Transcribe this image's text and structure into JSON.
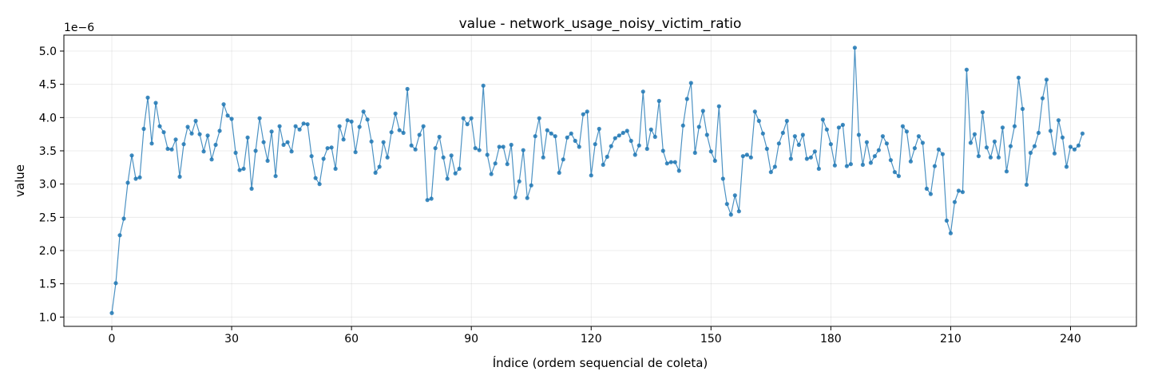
{
  "chart_data": {
    "type": "line",
    "title": "value - network_usage_noisy_victim_ratio",
    "xlabel": "Índice (ordem sequencial de coleta)",
    "ylabel": "value",
    "y_offset_label": "1e−6",
    "xlim": [
      -12,
      256.5
    ],
    "ylim": [
      0.86,
      5.24
    ],
    "xticks": [
      0,
      30,
      60,
      90,
      120,
      150,
      180,
      210,
      240
    ],
    "yticks": [
      1.0,
      1.5,
      2.0,
      2.5,
      3.0,
      3.5,
      4.0,
      4.5,
      5.0
    ],
    "xtick_labels": [
      "0",
      "30",
      "60",
      "90",
      "120",
      "150",
      "180",
      "210",
      "240"
    ],
    "ytick_labels": [
      "1.0",
      "1.5",
      "2.0",
      "2.5",
      "3.0",
      "3.5",
      "4.0",
      "4.5",
      "5.0"
    ],
    "grid": true,
    "line_color": "#1f77b4",
    "series": [
      {
        "values": [
          1.06,
          1.51,
          2.23,
          2.48,
          3.02,
          3.43,
          3.08,
          3.1,
          3.83,
          4.3,
          3.61,
          4.22,
          3.87,
          3.78,
          3.53,
          3.52,
          3.67,
          3.11,
          3.6,
          3.86,
          3.76,
          3.95,
          3.75,
          3.49,
          3.73,
          3.37,
          3.59,
          3.8,
          4.2,
          4.03,
          3.98,
          3.47,
          3.21,
          3.23,
          3.7,
          2.93,
          3.5,
          3.99,
          3.63,
          3.35,
          3.79,
          3.12,
          3.87,
          3.59,
          3.63,
          3.49,
          3.87,
          3.82,
          3.91,
          3.9,
          3.42,
          3.09,
          3.0,
          3.38,
          3.54,
          3.55,
          3.23,
          3.87,
          3.67,
          3.96,
          3.94,
          3.48,
          3.86,
          4.09,
          3.97,
          3.64,
          3.17,
          3.26,
          3.63,
          3.4,
          3.78,
          4.06,
          3.81,
          3.77,
          4.43,
          3.58,
          3.52,
          3.74,
          3.87,
          2.76,
          2.78,
          3.54,
          3.71,
          3.4,
          3.08,
          3.43,
          3.16,
          3.23,
          3.99,
          3.9,
          3.99,
          3.54,
          3.51,
          4.48,
          3.44,
          3.15,
          3.31,
          3.56,
          3.56,
          3.3,
          3.59,
          2.8,
          3.04,
          3.51,
          2.79,
          2.98,
          3.72,
          3.99,
          3.4,
          3.81,
          3.76,
          3.72,
          3.17,
          3.37,
          3.7,
          3.76,
          3.65,
          3.56,
          4.05,
          4.09,
          3.13,
          3.6,
          3.83,
          3.29,
          3.41,
          3.57,
          3.69,
          3.73,
          3.77,
          3.8,
          3.65,
          3.44,
          3.58,
          4.39,
          3.53,
          3.82,
          3.71,
          4.25,
          3.5,
          3.31,
          3.33,
          3.33,
          3.2,
          3.88,
          4.28,
          4.52,
          3.47,
          3.86,
          4.1,
          3.74,
          3.49,
          3.35,
          4.17,
          3.08,
          2.7,
          2.54,
          2.83,
          2.59,
          3.42,
          3.44,
          3.4,
          4.09,
          3.95,
          3.76,
          3.53,
          3.18,
          3.26,
          3.61,
          3.77,
          3.95,
          3.38,
          3.72,
          3.59,
          3.74,
          3.38,
          3.4,
          3.49,
          3.23,
          3.97,
          3.82,
          3.6,
          3.28,
          3.85,
          3.89,
          3.27,
          3.3,
          5.05,
          3.74,
          3.29,
          3.63,
          3.32,
          3.42,
          3.51,
          3.72,
          3.61,
          3.36,
          3.18,
          3.12,
          3.87,
          3.79,
          3.34,
          3.54,
          3.72,
          3.62,
          2.93,
          2.85,
          3.27,
          3.52,
          3.45,
          2.45,
          2.26,
          2.73,
          2.9,
          2.88,
          4.72,
          3.62,
          3.75,
          3.42,
          4.08,
          3.55,
          3.4,
          3.64,
          3.4,
          3.85,
          3.19,
          3.57,
          3.87,
          4.6,
          4.13,
          2.99,
          3.47,
          3.57,
          3.77,
          4.29,
          4.57,
          3.8,
          3.46,
          3.96,
          3.7,
          3.26,
          3.56,
          3.52,
          3.58,
          3.76
        ]
      }
    ]
  }
}
